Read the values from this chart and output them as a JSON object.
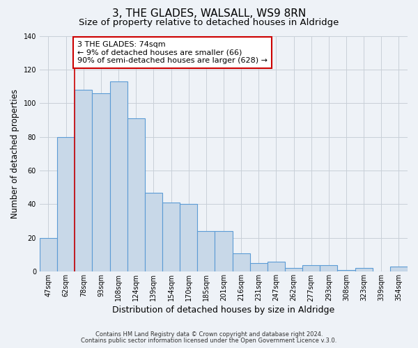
{
  "title": "3, THE GLADES, WALSALL, WS9 8RN",
  "subtitle": "Size of property relative to detached houses in Aldridge",
  "xlabel": "Distribution of detached houses by size in Aldridge",
  "ylabel": "Number of detached properties",
  "bin_labels": [
    "47sqm",
    "62sqm",
    "78sqm",
    "93sqm",
    "108sqm",
    "124sqm",
    "139sqm",
    "154sqm",
    "170sqm",
    "185sqm",
    "201sqm",
    "216sqm",
    "231sqm",
    "247sqm",
    "262sqm",
    "277sqm",
    "293sqm",
    "308sqm",
    "323sqm",
    "339sqm",
    "354sqm"
  ],
  "bar_heights": [
    20,
    80,
    108,
    106,
    113,
    91,
    47,
    41,
    40,
    24,
    24,
    11,
    5,
    6,
    2,
    4,
    4,
    1,
    2,
    0,
    3
  ],
  "bar_color": "#c8d8e8",
  "bar_edge_color": "#5b9bd5",
  "bar_edge_width": 0.8,
  "vline_index": 2,
  "vline_color": "#cc0000",
  "vline_linewidth": 1.2,
  "annotation_title": "3 THE GLADES: 74sqm",
  "annotation_line1": "← 9% of detached houses are smaller (66)",
  "annotation_line2": "90% of semi-detached houses are larger (628) →",
  "annotation_box_color": "#ffffff",
  "annotation_box_edge_color": "#cc0000",
  "ylim": [
    0,
    140
  ],
  "yticks": [
    0,
    20,
    40,
    60,
    80,
    100,
    120,
    140
  ],
  "footnote1": "Contains HM Land Registry data © Crown copyright and database right 2024.",
  "footnote2": "Contains public sector information licensed under the Open Government Licence v.3.0.",
  "background_color": "#eef2f7",
  "grid_color": "#c8cfd8",
  "title_fontsize": 11,
  "subtitle_fontsize": 9.5,
  "xlabel_fontsize": 9,
  "ylabel_fontsize": 8.5,
  "tick_fontsize": 7,
  "annotation_fontsize": 8,
  "footnote_fontsize": 6
}
